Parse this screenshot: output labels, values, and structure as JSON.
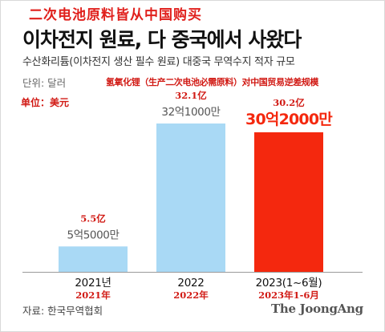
{
  "chinese_top_title": "二次电池原料皆从中国购买",
  "title": "이차전지 원료, 다 중국에서 사왔다",
  "subtitle": "수산화리튬(이차전지 생산 필수 원료) 대중국 무역수지 적자 규모",
  "unit_label": "단위: 달러",
  "chinese_subtitle": "氢氧化锂（生产二次电池必需原料）对中国贸易逆差规模",
  "chinese_unit_label": "单位：美元",
  "source": "자료: 한국무역협회",
  "logo": "The JoongAng",
  "colors": {
    "bar": "#a9d9f5",
    "highlight_bar": "#f4280e",
    "highlight_text": "#f4280e",
    "cn_annotation": "#d11a14"
  },
  "chart_data": {
    "type": "bar",
    "title": "이차전지 원료, 다 중국에서 사왔다",
    "categories": [
      "2021년",
      "2022",
      "2023(1~6월)"
    ],
    "categories_cn": [
      "2021年",
      "2022年",
      "2023年1-6月"
    ],
    "values": [
      550000000,
      3210000000,
      3020000000
    ],
    "data_labels": [
      "5억5000만",
      "32억1000만",
      "30억2000만"
    ],
    "data_labels_cn": [
      "5.5亿",
      "32.1亿",
      "30.2亿"
    ],
    "highlight_index": 2,
    "ylim": [
      0,
      3210000000
    ],
    "grid": false,
    "legend": "none"
  }
}
